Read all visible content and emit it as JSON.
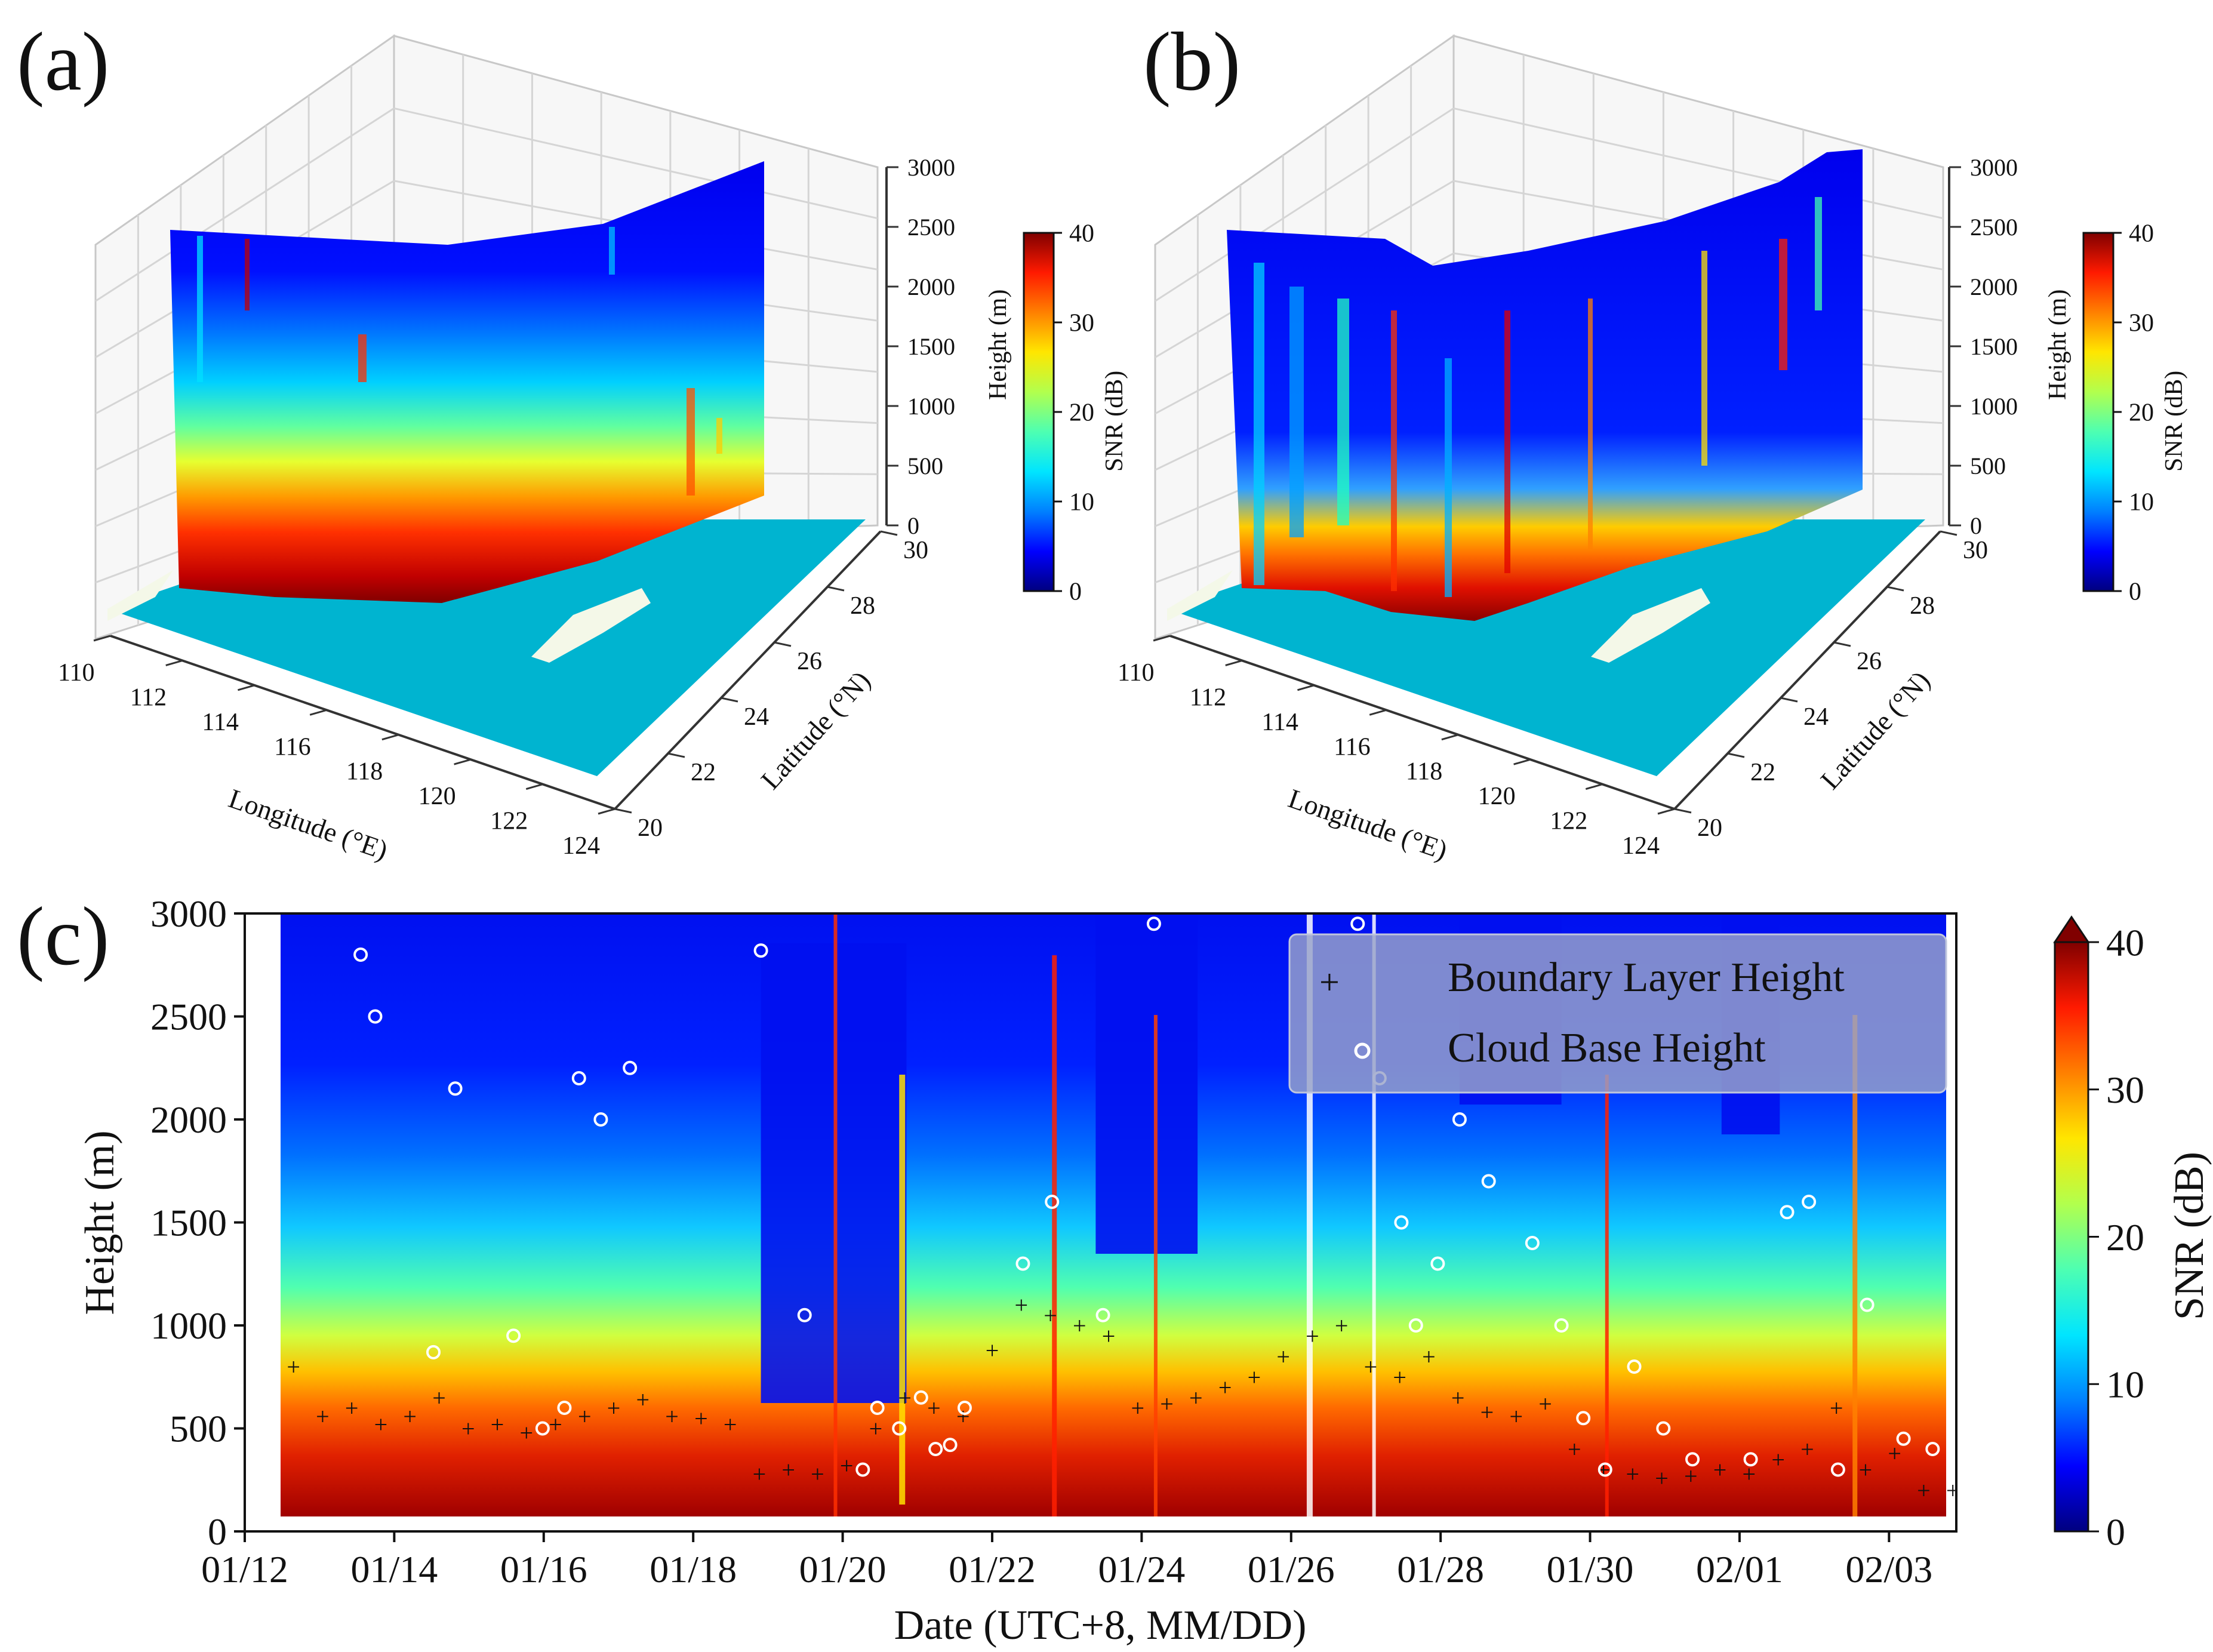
{
  "colors": {
    "colormap": [
      "#00007f",
      "#0000ff",
      "#0080ff",
      "#00e5ff",
      "#4dffb2",
      "#b2ff4d",
      "#ffe600",
      "#ff8000",
      "#ff1a00",
      "#800000"
    ],
    "sea": "#00b4d0",
    "land": "#f4f8e8",
    "grid": "#cccccc"
  },
  "chart_data": [
    {
      "panel": "a",
      "label": "(a)",
      "type": "heatmap",
      "subtype": "3d-curtain",
      "xlabel": "Longitude (°E)",
      "ylabel": "Latitude (°N)",
      "zlabel": "Height (m)",
      "x_ticks": [
        "110",
        "112",
        "114",
        "116",
        "118",
        "120",
        "122",
        "124"
      ],
      "y_ticks": [
        "20",
        "22",
        "24",
        "26",
        "28",
        "30"
      ],
      "z_ticks": [
        "0",
        "500",
        "1000",
        "1500",
        "2000",
        "2500",
        "3000"
      ],
      "xlim": [
        110,
        124
      ],
      "ylim": [
        20,
        30
      ],
      "zlim": [
        0,
        3000
      ],
      "colorbar": {
        "label": "SNR (dB)",
        "ticks": [
          "0",
          "10",
          "20",
          "30",
          "40"
        ],
        "range": [
          0,
          40
        ]
      }
    },
    {
      "panel": "b",
      "label": "(b)",
      "type": "heatmap",
      "subtype": "3d-curtain",
      "xlabel": "Longitude (°E)",
      "ylabel": "Latitude (°N)",
      "zlabel": "Height (m)",
      "x_ticks": [
        "110",
        "112",
        "114",
        "116",
        "118",
        "120",
        "122",
        "124"
      ],
      "y_ticks": [
        "20",
        "22",
        "24",
        "26",
        "28",
        "30"
      ],
      "z_ticks": [
        "0",
        "500",
        "1000",
        "1500",
        "2000",
        "2500",
        "3000"
      ],
      "xlim": [
        110,
        124
      ],
      "ylim": [
        20,
        30
      ],
      "zlim": [
        0,
        3000
      ],
      "colorbar": {
        "label": "SNR (dB)",
        "ticks": [
          "0",
          "10",
          "20",
          "30",
          "40"
        ],
        "range": [
          0,
          40
        ]
      }
    },
    {
      "panel": "c",
      "label": "(c)",
      "type": "heatmap",
      "xlabel": "Date (UTC+8, MM/DD)",
      "ylabel": "Height (m)",
      "x_ticks": [
        "01/12",
        "01/14",
        "01/16",
        "01/18",
        "01/20",
        "01/22",
        "01/24",
        "01/26",
        "01/28",
        "01/30",
        "02/01",
        "02/03"
      ],
      "y_ticks": [
        "0",
        "500",
        "1000",
        "1500",
        "2000",
        "2500",
        "3000"
      ],
      "ylim": [
        0,
        3000
      ],
      "x_days": [
        0,
        23
      ],
      "colorbar": {
        "label": "SNR (dB)",
        "ticks": [
          "0",
          "10",
          "20",
          "30",
          "40"
        ],
        "range": [
          0,
          40
        ],
        "extend": "max"
      },
      "legend": {
        "position": "top-right",
        "entries": [
          "Boundary Layer Height",
          "Cloud Base Height"
        ]
      },
      "series": [
        {
          "name": "Boundary Layer Height",
          "marker": "+",
          "x_day": [
            0.2,
            0.6,
            1.0,
            1.4,
            1.8,
            2.2,
            2.6,
            3.0,
            3.4,
            3.8,
            4.2,
            4.6,
            5.0,
            5.4,
            5.8,
            6.2,
            6.6,
            7.0,
            7.4,
            7.8,
            8.2,
            8.6,
            9.0,
            9.4,
            9.8,
            10.2,
            10.6,
            11.0,
            11.4,
            11.8,
            12.2,
            12.6,
            13.0,
            13.4,
            13.8,
            14.2,
            14.6,
            15.0,
            15.4,
            15.8,
            16.2,
            16.6,
            17.0,
            17.4,
            17.8,
            18.2,
            18.6,
            19.0,
            19.4,
            19.8,
            20.2,
            20.6,
            21.0,
            21.4,
            21.8,
            22.2,
            22.6,
            23.0
          ],
          "height_m": [
            800,
            560,
            600,
            520,
            560,
            650,
            500,
            520,
            480,
            520,
            560,
            600,
            640,
            560,
            550,
            520,
            280,
            300,
            280,
            320,
            500,
            650,
            600,
            560,
            880,
            1100,
            1050,
            1000,
            950,
            600,
            620,
            650,
            700,
            750,
            850,
            950,
            1000,
            800,
            750,
            850,
            650,
            580,
            560,
            620,
            400,
            300,
            280,
            260,
            270,
            300,
            280,
            350,
            400,
            600,
            300,
            380,
            200,
            200
          ]
        },
        {
          "name": "Cloud Base Height",
          "marker": "o",
          "x_day": [
            1.1,
            1.3,
            2.1,
            2.4,
            3.2,
            3.6,
            3.9,
            4.1,
            4.4,
            4.8,
            6.6,
            7.2,
            8.0,
            8.2,
            8.5,
            8.8,
            9.0,
            9.2,
            9.4,
            10.2,
            10.6,
            11.3,
            12.0,
            14.8,
            15.1,
            15.4,
            15.6,
            15.9,
            16.2,
            16.6,
            17.2,
            17.6,
            17.9,
            18.2,
            18.6,
            19.0,
            19.4,
            20.2,
            20.7,
            21.0,
            21.4,
            21.8,
            22.3,
            22.7,
            23.0
          ],
          "height_m": [
            2800,
            2500,
            870,
            2150,
            950,
            500,
            600,
            2200,
            2000,
            2250,
            2820,
            1050,
            300,
            600,
            500,
            650,
            400,
            420,
            600,
            1300,
            1600,
            1050,
            2950,
            2950,
            2200,
            1500,
            1000,
            1300,
            2000,
            1700,
            1400,
            1000,
            550,
            300,
            800,
            500,
            350,
            350,
            1550,
            1600,
            300,
            1100,
            450,
            400,
            350
          ]
        }
      ]
    }
  ]
}
